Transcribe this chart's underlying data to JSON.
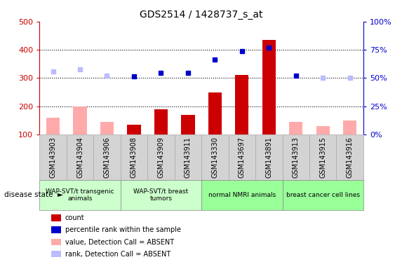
{
  "title": "GDS2514 / 1428737_s_at",
  "samples": [
    "GSM143903",
    "GSM143904",
    "GSM143906",
    "GSM143908",
    "GSM143909",
    "GSM143911",
    "GSM143330",
    "GSM143697",
    "GSM143891",
    "GSM143913",
    "GSM143915",
    "GSM143916"
  ],
  "count_red": [
    null,
    null,
    null,
    135,
    190,
    170,
    250,
    310,
    435,
    null,
    null,
    null
  ],
  "count_pink": [
    160,
    200,
    145,
    null,
    null,
    null,
    null,
    null,
    null,
    145,
    130,
    150
  ],
  "rank_blue_left_val": [
    null,
    null,
    null,
    307,
    318,
    318,
    365,
    395,
    408,
    308,
    null,
    null
  ],
  "rank_lightblue_left_val": [
    323,
    330,
    308,
    null,
    null,
    null,
    null,
    null,
    null,
    null,
    300,
    300
  ],
  "ylim_left": [
    100,
    500
  ],
  "ylim_right": [
    0,
    100
  ],
  "yticks_left": [
    100,
    200,
    300,
    400,
    500
  ],
  "yticks_right": [
    0,
    25,
    50,
    75,
    100
  ],
  "ytick_labels_right": [
    "0%",
    "25%",
    "50%",
    "75%",
    "100%"
  ],
  "hlines": [
    200,
    300,
    400
  ],
  "group_starts": [
    0,
    3,
    6,
    9
  ],
  "group_ends": [
    2,
    5,
    8,
    11
  ],
  "group_labels": [
    "WAP-SVT/t transgenic\nanimals",
    "WAP-SVT/t breast\ntumors",
    "normal NMRI animals",
    "breast cancer cell lines"
  ],
  "group_colors": [
    "#ccffcc",
    "#ccffcc",
    "#99ff99",
    "#99ff99"
  ],
  "bar_width": 0.5,
  "left_axis_color": "#cc0000",
  "right_axis_color": "#0000cc",
  "bg_color": "#ffffff",
  "gray_col_color": "#d3d3d3",
  "gray_col_edge": "#aaaaaa",
  "legend_labels": [
    "count",
    "percentile rank within the sample",
    "value, Detection Call = ABSENT",
    "rank, Detection Call = ABSENT"
  ],
  "legend_colors": [
    "#cc0000",
    "#0000cc",
    "#ffaaaa",
    "#bbbbff"
  ]
}
